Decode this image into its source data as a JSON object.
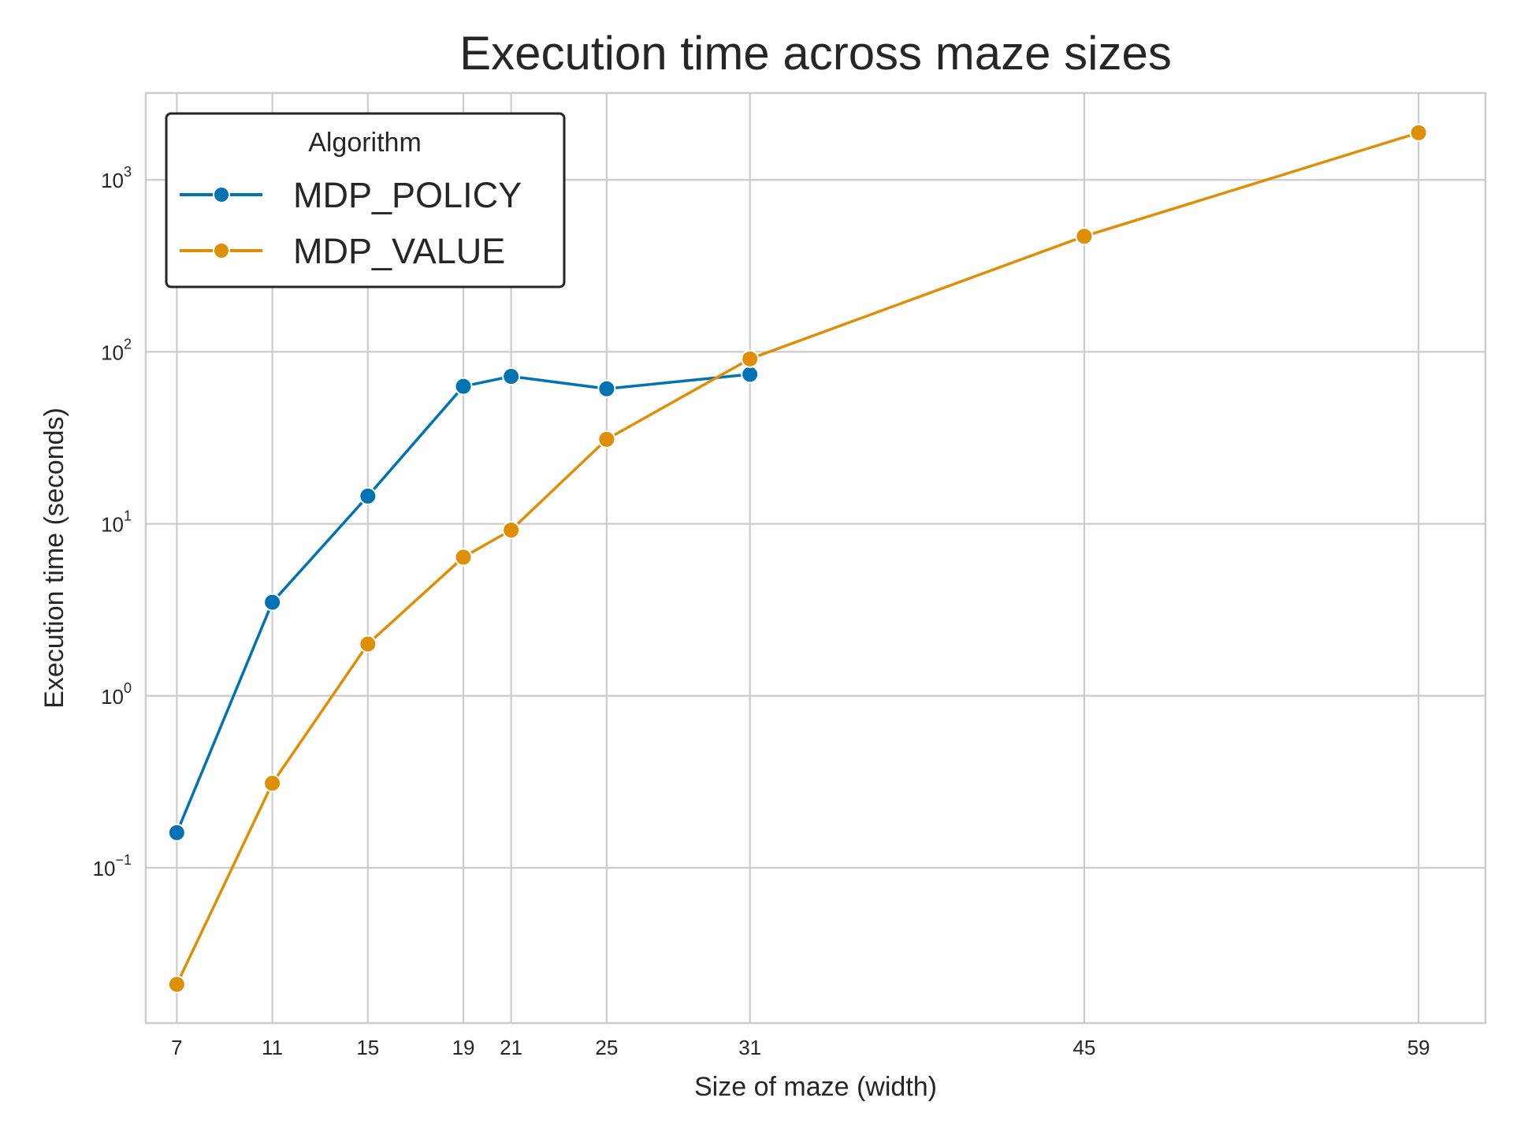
{
  "chart_data": {
    "type": "line",
    "title": "Execution time across maze sizes",
    "xlabel": "Size of maze (width)",
    "ylabel": "Execution time (seconds)",
    "y_scale": "log",
    "ylim": [
      0.0125,
      3200
    ],
    "xlim": [
      5.7,
      61.8
    ],
    "x_ticks": [
      7,
      11,
      15,
      19,
      21,
      25,
      31,
      45,
      59
    ],
    "y_ticks": [
      {
        "value": 0.1,
        "base": "10",
        "exponent": "−1"
      },
      {
        "value": 1,
        "base": "10",
        "exponent": "0"
      },
      {
        "value": 10,
        "base": "10",
        "exponent": "1"
      },
      {
        "value": 100,
        "base": "10",
        "exponent": "2"
      },
      {
        "value": 1000,
        "base": "10",
        "exponent": "3"
      }
    ],
    "grid": true,
    "legend": {
      "title": "Algorithm",
      "position": "top-left"
    },
    "series": [
      {
        "name": "MDP_POLICY",
        "color": "#0173b2",
        "x": [
          7,
          11,
          15,
          19,
          21,
          25,
          31
        ],
        "y": [
          0.16,
          3.5,
          14.5,
          63,
          72,
          61,
          74
        ]
      },
      {
        "name": "MDP_VALUE",
        "color": "#de8f05",
        "x": [
          7,
          11,
          15,
          19,
          21,
          25,
          31,
          45,
          59
        ],
        "y": [
          0.021,
          0.31,
          2.0,
          6.4,
          9.2,
          31,
          91,
          470,
          1880
        ]
      }
    ]
  }
}
